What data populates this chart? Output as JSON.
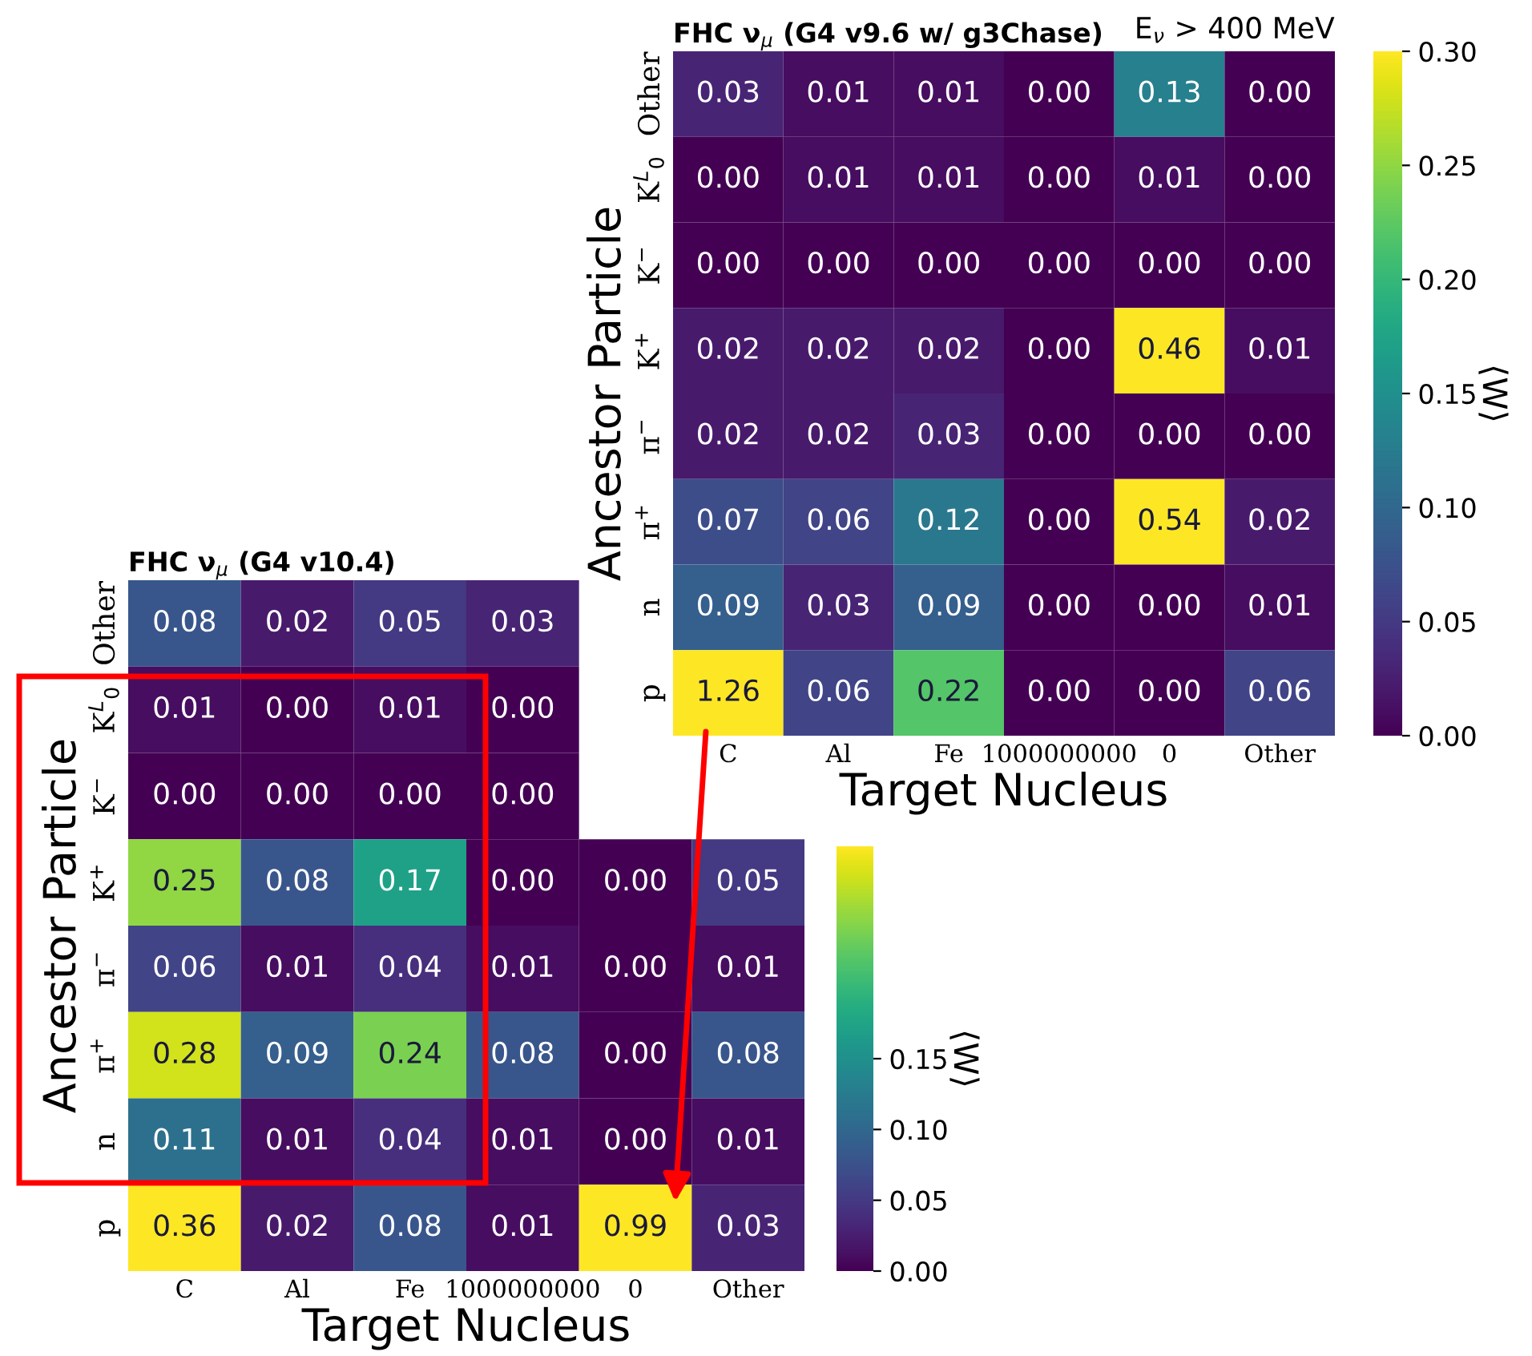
{
  "chart_data": [
    {
      "type": "heatmap",
      "title": "FHC ν$_{μ}$ (G4 v9.6 w/ g3Chase)",
      "annotations": [
        "E$_{ν}$ > 400 MeV"
      ],
      "xlabel": "Target Nucleus",
      "ylabel": "Ancestor Particle",
      "clabel": "⟨W⟩",
      "categories": [
        "C",
        "Al",
        "Fe",
        "1000000000",
        "0",
        "Other"
      ],
      "y_categories": [
        "Other",
        "K$^{L}$$_{0}$",
        "K$^{−}$",
        "K$^{+}$",
        "π$^{−}$",
        "π$^{+}$",
        "n",
        "p"
      ],
      "cells": [
        [
          0.03,
          0.01,
          0.01,
          0.0,
          0.13,
          0.0
        ],
        [
          0.0,
          0.01,
          0.01,
          0.0,
          0.01,
          0.0
        ],
        [
          0.0,
          0.0,
          0.0,
          0.0,
          0.0,
          0.0
        ],
        [
          0.02,
          0.02,
          0.02,
          0.0,
          0.46,
          0.01
        ],
        [
          0.02,
          0.02,
          0.03,
          0.0,
          0.0,
          0.0
        ],
        [
          0.07,
          0.06,
          0.12,
          0.0,
          0.54,
          0.02
        ],
        [
          0.09,
          0.03,
          0.09,
          0.0,
          0.0,
          0.01
        ],
        [
          1.26,
          0.06,
          0.22,
          0.0,
          0.0,
          0.06
        ]
      ],
      "cell_labels": [
        [
          "0.03",
          "0.01",
          "0.01",
          "0.00",
          "0.13",
          "0.00"
        ],
        [
          "0.00",
          "0.01",
          "0.01",
          "0.00",
          "0.01",
          "0.00"
        ],
        [
          "0.00",
          "0.00",
          "0.00",
          "0.00",
          "0.00",
          "0.00"
        ],
        [
          "0.02",
          "0.02",
          "0.02",
          "0.00",
          "0.46",
          "0.01"
        ],
        [
          "0.02",
          "0.02",
          "0.03",
          "0.00",
          "0.00",
          "0.00"
        ],
        [
          "0.07",
          "0.06",
          "0.12",
          "0.00",
          "0.54",
          "0.02"
        ],
        [
          "0.09",
          "0.03",
          "0.09",
          "0.00",
          "0.00",
          "0.01"
        ],
        [
          "1.26",
          "0.06",
          "0.22",
          "0.00",
          "0.00",
          "0.06"
        ]
      ],
      "clim": [
        0,
        0.3
      ],
      "cticks": [
        {
          "value": 0,
          "label": "0.00"
        },
        0.05,
        {
          "value": 0.1,
          "label": "0.10"
        },
        0.15,
        {
          "value": 0.2,
          "label": "0.20"
        },
        0.25,
        {
          "value": 0.3,
          "label": "0.30"
        }
      ]
    },
    {
      "type": "heatmap",
      "title": "FHC ν$_{μ}$ (G4 v10.4)",
      "xlabel": "Target Nucleus",
      "ylabel": "Ancestor Particle",
      "clabel": "⟨W⟩",
      "categories": [
        "C",
        "Al",
        "Fe",
        "1000000000",
        "0",
        "Other"
      ],
      "y_categories": [
        "Other",
        "K$^{L}$$_{0}$",
        "K$^{−}$",
        "K$^{+}$",
        "π$^{−}$",
        "π$^{+}$",
        "n",
        "p"
      ],
      "cells": [
        [
          0.08,
          0.02,
          0.05,
          0.03,
          null,
          null
        ],
        [
          0.01,
          0.0,
          0.01,
          0.0,
          null,
          null
        ],
        [
          0.0,
          0.0,
          0.0,
          0.0,
          null,
          null
        ],
        [
          0.25,
          0.08,
          0.17,
          0.0,
          0.0,
          0.05
        ],
        [
          0.06,
          0.01,
          0.04,
          0.01,
          0.0,
          0.01
        ],
        [
          0.28,
          0.09,
          0.24,
          0.08,
          0.0,
          0.08
        ],
        [
          0.11,
          0.01,
          0.04,
          0.01,
          0.0,
          0.01
        ],
        [
          0.36,
          0.02,
          0.08,
          0.01,
          0.99,
          0.03
        ]
      ],
      "cell_labels": [
        [
          "0.08",
          "0.02",
          "0.05",
          "0.03",
          null,
          null
        ],
        [
          "0.01",
          "0.00",
          "0.01",
          "0.00",
          null,
          null
        ],
        [
          "0.00",
          "0.00",
          "0.00",
          "0.00",
          null,
          null
        ],
        [
          "0.25",
          "0.08",
          "0.17",
          "0.00",
          "0.00",
          "0.05"
        ],
        [
          "0.06",
          "0.01",
          "0.04",
          "0.01",
          "0.00",
          "0.01"
        ],
        [
          "0.28",
          "0.09",
          "0.24",
          "0.08",
          "0.00",
          "0.08"
        ],
        [
          "0.11",
          "0.01",
          "0.04",
          "0.01",
          "0.00",
          "0.01"
        ],
        [
          "0.36",
          "0.02",
          "0.08",
          "0.01",
          "0.99",
          "0.03"
        ]
      ],
      "clim": [
        0,
        0.3
      ],
      "cticks": [
        {
          "value": 0,
          "label": "0.00"
        },
        0.05,
        {
          "value": 0.1,
          "label": "0.10"
        },
        0.15
      ]
    }
  ]
}
